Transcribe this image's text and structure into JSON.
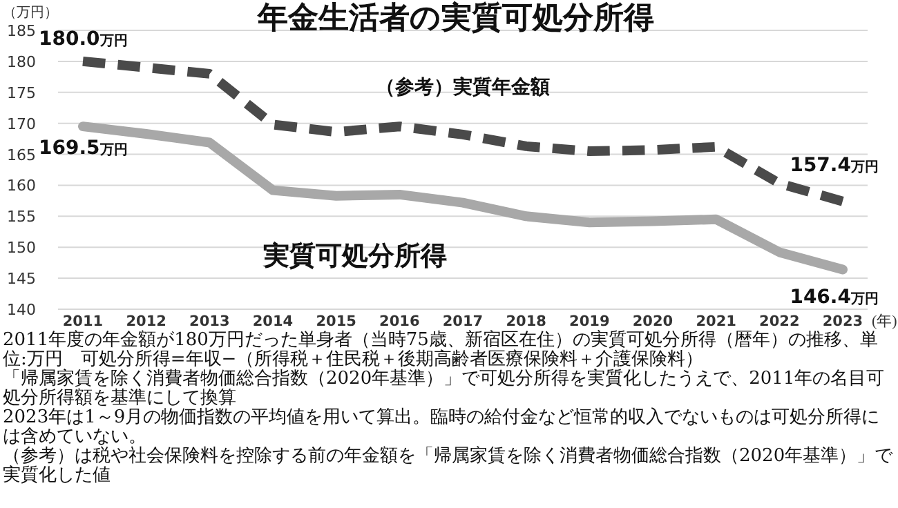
{
  "chart_data": {
    "type": "line",
    "title": "年金生活者の実質可処分所得",
    "ylabel": "（万円）",
    "xlabel": "(年)",
    "categories": [
      "2011",
      "2012",
      "2013",
      "2014",
      "2015",
      "2016",
      "2017",
      "2018",
      "2019",
      "2020",
      "2021",
      "2022",
      "2023"
    ],
    "series": [
      {
        "name": "（参考）実質年金額",
        "color": "#4a4a4a",
        "line_style": "dashed",
        "values": [
          180.0,
          179.0,
          178.0,
          169.8,
          168.6,
          169.5,
          168.2,
          166.3,
          165.5,
          165.7,
          166.2,
          160.3,
          157.4
        ],
        "value_labels": [
          "180.0万円",
          null,
          null,
          null,
          null,
          null,
          null,
          null,
          null,
          null,
          null,
          null,
          "157.4万円"
        ]
      },
      {
        "name": "実質可処分所得",
        "color": "#a8a8a8",
        "line_style": "solid",
        "values": [
          169.5,
          168.3,
          166.9,
          159.2,
          158.3,
          158.5,
          157.2,
          155.0,
          154.0,
          154.2,
          154.5,
          149.2,
          146.4
        ],
        "value_labels": [
          "169.5万円",
          null,
          null,
          null,
          null,
          null,
          null,
          null,
          null,
          null,
          null,
          null,
          "146.4万円"
        ]
      }
    ],
    "ylim": [
      140,
      185
    ],
    "yticks": [
      140,
      145,
      150,
      155,
      160,
      165,
      170,
      175,
      180,
      185
    ],
    "grid": "y",
    "legend": false,
    "marker": "none",
    "annotations": [
      "2011年度の年金額が180万円だった単身者（当時75歳、新宿区在住）の実質可処分所得（暦年）の推移、単位:万円　可処分所得=年収−（所得税＋住民税＋後期高齢者医療保険料＋介護保険料）",
      "「帰属家賃を除く消費者物価総合指数（2020年基準）」で可処分所得を実質化したうえで、2011年の名目可処分所得額を基準にして換算",
      "2023年は1～9月の物価指数の平均値を用いて算出。臨時の給付金など恒常的収入でないものは可処分所得には含めていない。",
      "（参考）は税や社会保険料を控除する前の年金額を「帰属家賃を除く消費者物価総合指数（2020年基準）」で実質化した値"
    ]
  }
}
